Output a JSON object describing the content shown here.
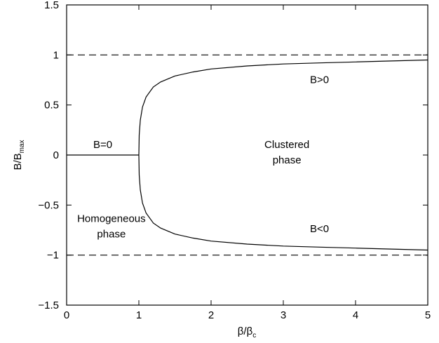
{
  "chart_data": {
    "type": "line",
    "title": "",
    "xlabel": {
      "base": "β/β",
      "sub": "c"
    },
    "ylabel": {
      "base": "B/B",
      "sub": "max"
    },
    "xlim": [
      0,
      5
    ],
    "ylim": [
      -1.5,
      1.5
    ],
    "xticks": [
      0,
      1,
      2,
      3,
      4,
      5
    ],
    "xtick_labels": [
      "0",
      "1",
      "2",
      "3",
      "4",
      "5"
    ],
    "yticks": [
      -1.5,
      -1,
      -0.5,
      0,
      0.5,
      1,
      1.5
    ],
    "ytick_labels": [
      "−1.5",
      "−1",
      "−0.5",
      "0",
      "0.5",
      "1",
      "1.5"
    ],
    "grid": false,
    "series": [
      {
        "style": "solid",
        "x": [
          0,
          1
        ],
        "y": [
          0,
          0
        ]
      },
      {
        "style": "solid",
        "x": [
          1.0,
          1.005,
          1.02,
          1.05,
          1.1,
          1.2,
          1.3,
          1.5,
          1.75,
          2.0,
          2.5,
          3.0,
          3.5,
          4.0,
          4.5,
          5.0
        ],
        "y": [
          0,
          0.2,
          0.35,
          0.48,
          0.58,
          0.68,
          0.73,
          0.79,
          0.83,
          0.86,
          0.89,
          0.91,
          0.92,
          0.93,
          0.94,
          0.95
        ]
      },
      {
        "style": "solid",
        "x": [
          1.0,
          1.005,
          1.02,
          1.05,
          1.1,
          1.2,
          1.3,
          1.5,
          1.75,
          2.0,
          2.5,
          3.0,
          3.5,
          4.0,
          4.5,
          5.0
        ],
        "y": [
          0,
          -0.2,
          -0.35,
          -0.48,
          -0.58,
          -0.68,
          -0.73,
          -0.79,
          -0.83,
          -0.86,
          -0.89,
          -0.91,
          -0.92,
          -0.93,
          -0.94,
          -0.95
        ]
      },
      {
        "style": "dashed",
        "x": [
          0,
          5
        ],
        "y": [
          1,
          1
        ]
      },
      {
        "style": "dashed",
        "x": [
          0,
          5
        ],
        "y": [
          -1,
          -1
        ]
      }
    ],
    "annotations": [
      {
        "lines": [
          "B=0"
        ],
        "x": 0.5,
        "y": 0.07
      },
      {
        "lines": [
          "B>0"
        ],
        "x": 3.5,
        "y": 0.72
      },
      {
        "lines": [
          "Clustered",
          "phase"
        ],
        "x": 3.05,
        "y": 0.07
      },
      {
        "lines": [
          "Homogeneous",
          "phase"
        ],
        "x": 0.62,
        "y": -0.67
      },
      {
        "lines": [
          "B<0"
        ],
        "x": 3.5,
        "y": -0.77
      }
    ]
  }
}
